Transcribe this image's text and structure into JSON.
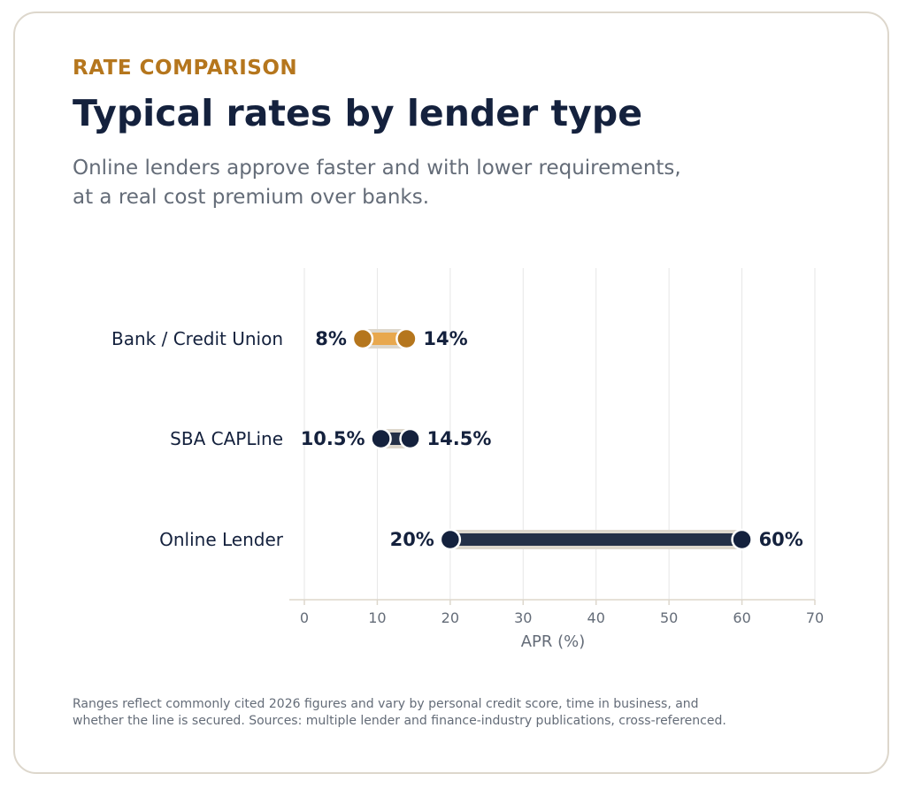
{
  "header": {
    "eyebrow": "RATE COMPARISON",
    "title": "Typical rates by lender type",
    "subtitle": "Online lenders approve faster and with lower requirements, at a real cost premium over banks."
  },
  "footnote": "Ranges reflect commonly cited 2026 figures and vary by personal credit score, time in business, and whether the line is secured. Sources: multiple lender and finance-industry publications, cross-referenced.",
  "colors": {
    "eyebrow": "#b5761d",
    "title": "#14213d",
    "subtitle": "#646c78",
    "footnote": "#646c78",
    "tick_text": "#646c78",
    "category_text": "#14213d",
    "grid": "#e6e6e6",
    "axis": "#ddd7cc",
    "halo": "#ddd7cc",
    "bank_dot": "#b5761d",
    "bank_bar": "#e8a84e",
    "dark_dot": "#14213d",
    "dark_bar": "#243047"
  },
  "chart_data": {
    "type": "dumbbell",
    "xlabel": "APR (%)",
    "xlim": [
      0,
      70
    ],
    "xticks": [
      0,
      10,
      20,
      30,
      40,
      50,
      60,
      70
    ],
    "grid": "vertical",
    "series": [
      {
        "name": "Bank / Credit Union",
        "low": 8,
        "high": 14,
        "low_label": "8%",
        "high_label": "14%",
        "dot_color": "#b5761d",
        "bar_color": "#e8a84e"
      },
      {
        "name": "SBA CAPLine",
        "low": 10.5,
        "high": 14.5,
        "low_label": "10.5%",
        "high_label": "14.5%",
        "dot_color": "#14213d",
        "bar_color": "#243047"
      },
      {
        "name": "Online Lender",
        "low": 20,
        "high": 60,
        "low_label": "20%",
        "high_label": "60%",
        "dot_color": "#14213d",
        "bar_color": "#243047"
      }
    ]
  }
}
